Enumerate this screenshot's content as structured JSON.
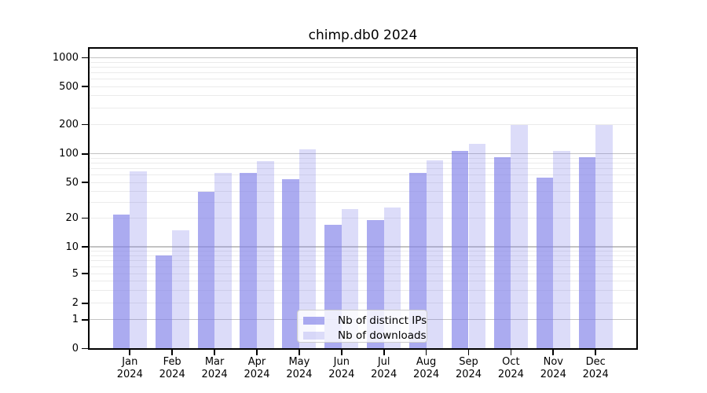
{
  "chart_data": {
    "type": "bar",
    "title": "chimp.db0 2024",
    "categories": [
      "Jan",
      "Feb",
      "Mar",
      "Apr",
      "May",
      "Jun",
      "Jul",
      "Aug",
      "Sep",
      "Oct",
      "Nov",
      "Dec"
    ],
    "category_year": "2024",
    "series": [
      {
        "name": "Nb of distinct IPs",
        "color": "#8080e8",
        "alpha": 0.66,
        "values": [
          22,
          8,
          39,
          63,
          54,
          17,
          19,
          63,
          108,
          92,
          56,
          93
        ]
      },
      {
        "name": "Nb of downloads",
        "color": "#8080e8",
        "alpha": 0.28,
        "values": [
          65,
          15,
          63,
          84,
          111,
          25,
          26,
          86,
          127,
          197,
          108,
          197
        ]
      }
    ],
    "yscale": "symlog (linear 0-1, log above 1)",
    "yticks": [
      0,
      1,
      2,
      5,
      10,
      20,
      50,
      100,
      200,
      500,
      1000
    ],
    "ylim": [
      0,
      1090
    ],
    "xlabel": "",
    "ylabel": "",
    "grid": true,
    "legend_position": "lower center"
  },
  "colors": {
    "grid_major": "#c3c3c3",
    "grid_minor": "#ebebeb",
    "axis": "#000000",
    "legend_border": "#cccccc",
    "background": "#ffffff"
  }
}
